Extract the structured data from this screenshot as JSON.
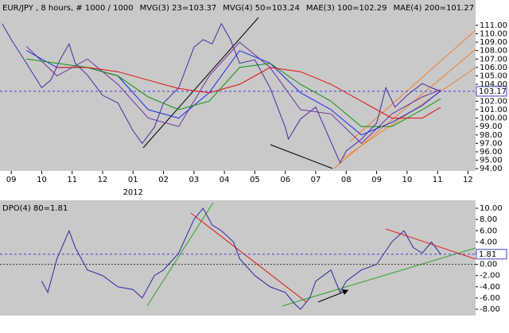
{
  "chart_data": [
    {
      "type": "line",
      "title": "EUR/JPY , 8 hours, # 1000 / 1000",
      "xlim": [
        -0.37,
        15.25
      ],
      "xticks": [
        {
          "value": 0,
          "label": "09"
        },
        {
          "value": 1,
          "label": "10"
        },
        {
          "value": 2,
          "label": "11"
        },
        {
          "value": 3,
          "label": "12"
        },
        {
          "value": 4,
          "label": "01"
        },
        {
          "value": 5,
          "label": "02"
        },
        {
          "value": 6,
          "label": "03"
        },
        {
          "value": 7,
          "label": "04"
        },
        {
          "value": 8,
          "label": "05"
        },
        {
          "value": 9,
          "label": "06"
        },
        {
          "value": 10,
          "label": "07"
        },
        {
          "value": 11,
          "label": "08"
        },
        {
          "value": 12,
          "label": "09"
        },
        {
          "value": 13,
          "label": "10"
        },
        {
          "value": 14,
          "label": "11"
        },
        {
          "value": 15,
          "label": "12"
        }
      ],
      "annotations": [
        {
          "text": "2012",
          "x": 4
        }
      ],
      "ylim": [
        93.74,
        114.0
      ],
      "yticks": [
        {
          "value": 111,
          "label": "111.00"
        },
        {
          "value": 110,
          "label": "110.00"
        },
        {
          "value": 109,
          "label": "109.00"
        },
        {
          "value": 108,
          "label": "108.00"
        },
        {
          "value": 107,
          "label": "107.00"
        },
        {
          "value": 106,
          "label": "106.00"
        },
        {
          "value": 105,
          "label": "105.00"
        },
        {
          "value": 104,
          "label": "104.00"
        },
        {
          "value": 103,
          "label": "103.00"
        },
        {
          "value": 102,
          "label": "102.00"
        },
        {
          "value": 101,
          "label": "101.00"
        },
        {
          "value": 100,
          "label": "100.00"
        },
        {
          "value": 99,
          "label": "99.00"
        },
        {
          "value": 98,
          "label": "98.00"
        },
        {
          "value": 97,
          "label": "97.00"
        },
        {
          "value": 96,
          "label": "96.00"
        },
        {
          "value": 95,
          "label": "95.00"
        },
        {
          "value": 94,
          "label": "94.00"
        }
      ],
      "series": [
        {
          "color": "#4a2aa0",
          "x": [
            -0.3,
            0,
            0.5,
            1,
            1.3,
            1.6,
            1.9,
            2.1,
            2.5,
            3,
            3.5,
            4,
            4.3,
            4.7,
            5,
            5.5,
            6,
            6.3,
            6.6,
            6.9,
            7.2,
            7.5,
            8,
            8.5,
            9,
            9.1,
            9.5,
            10,
            10.4,
            10.8,
            11,
            11.5,
            12,
            12.3,
            12.6,
            13,
            13.5,
            13.8,
            14.1
          ],
          "values": [
            111.2,
            109.3,
            106.5,
            103.6,
            104.5,
            106.9,
            108.8,
            106.5,
            105.1,
            102.7,
            101.8,
            98.5,
            97.0,
            98.9,
            101.8,
            103.6,
            108.4,
            109.3,
            108.8,
            111.2,
            109.3,
            106.5,
            106.9,
            103.6,
            98.9,
            97.5,
            99.9,
            101.3,
            98.0,
            94.7,
            96.1,
            97.5,
            99.4,
            103.6,
            101.3,
            102.7,
            104.1,
            103.6,
            103.17
          ]
        },
        {
          "name": "MVG(3) 23=103.37",
          "color": "#7030a0",
          "x": [
            0.5,
            1.5,
            2.5,
            3.5,
            4.5,
            5.5,
            6.5,
            7.5,
            8.5,
            9.5,
            10.5,
            11.5,
            12.5,
            13.5,
            14.1
          ],
          "values": [
            108.5,
            105,
            107,
            104,
            100,
            99,
            105,
            109,
            106,
            101,
            100.5,
            97,
            100.5,
            102.5,
            103.37
          ]
        },
        {
          "name": "MVG(4) 50=103.24",
          "color": "#1a2ae0",
          "x": [
            0.5,
            1.5,
            2.5,
            3.5,
            4.5,
            5.5,
            6.5,
            7.5,
            8.5,
            9.5,
            10.5,
            11.5,
            12.5,
            13.5,
            14.1
          ],
          "values": [
            108,
            106,
            106,
            105,
            101,
            100,
            103,
            108,
            106.5,
            103,
            101,
            98,
            99.5,
            101.5,
            103.24
          ]
        },
        {
          "name": "MAE(3) 100=102.29",
          "color": "#109010",
          "x": [
            0.5,
            1.5,
            2.5,
            3.5,
            4.5,
            5.5,
            6.5,
            7.5,
            8.5,
            9.5,
            10.5,
            11.5,
            12.5,
            13.5,
            14.1
          ],
          "values": [
            107,
            106.5,
            106,
            105,
            102.5,
            101,
            102,
            106,
            106.5,
            104,
            102,
            99,
            99,
            101,
            102.29
          ]
        },
        {
          "name": "MAE(4) 200=101.27",
          "color": "#e01010",
          "x": [
            1.5,
            2.5,
            3.5,
            4.5,
            5.5,
            6.5,
            7.5,
            8.5,
            9.5,
            10.5,
            11.5,
            12.5,
            13.5,
            14.1
          ],
          "values": [
            106,
            106,
            105.5,
            104.5,
            103.5,
            103,
            104,
            106,
            105.5,
            104,
            102,
            100,
            100,
            101.27
          ]
        }
      ]
    },
    {
      "type": "line",
      "xlim": [
        -0.37,
        15.25
      ],
      "ylim": [
        -9.12,
        11.42
      ],
      "yticks": [
        {
          "value": 10,
          "label": "10.00"
        },
        {
          "value": 8,
          "label": "8.00"
        },
        {
          "value": 6,
          "label": "6.00"
        },
        {
          "value": 4,
          "label": "4.00"
        },
        {
          "value": 2,
          "label": "2.00"
        },
        {
          "value": 0,
          "label": "0.00"
        },
        {
          "value": -2,
          "label": "-2.00"
        },
        {
          "value": -4,
          "label": "-4.00"
        },
        {
          "value": -6,
          "label": "-6.00"
        },
        {
          "value": -8,
          "label": "-8.00"
        }
      ],
      "series": [
        {
          "name": "DPO(4) 80=1.81",
          "color": "#2a2aa0",
          "x": [
            1.0,
            1.2,
            1.5,
            1.9,
            2.1,
            2.5,
            3,
            3.5,
            4,
            4.3,
            4.7,
            5,
            5.5,
            6,
            6.3,
            6.6,
            6.9,
            7.3,
            7.5,
            8,
            8.5,
            9,
            9.3,
            9.5,
            9.8,
            10,
            10.5,
            10.8,
            11,
            11.5,
            12,
            12.5,
            12.9,
            13.2,
            13.5,
            13.8,
            14.1
          ],
          "values": [
            -3,
            -5,
            1,
            6,
            3,
            -1,
            -2,
            -4,
            -4.5,
            -6,
            -2,
            -1,
            2,
            8,
            10,
            7,
            6,
            4,
            1,
            -2,
            -4,
            -5,
            -7,
            -8,
            -6,
            -3,
            -1,
            -5,
            -3,
            -1,
            0,
            4,
            6,
            3,
            2,
            4,
            1.81
          ]
        }
      ]
    }
  ]
}
